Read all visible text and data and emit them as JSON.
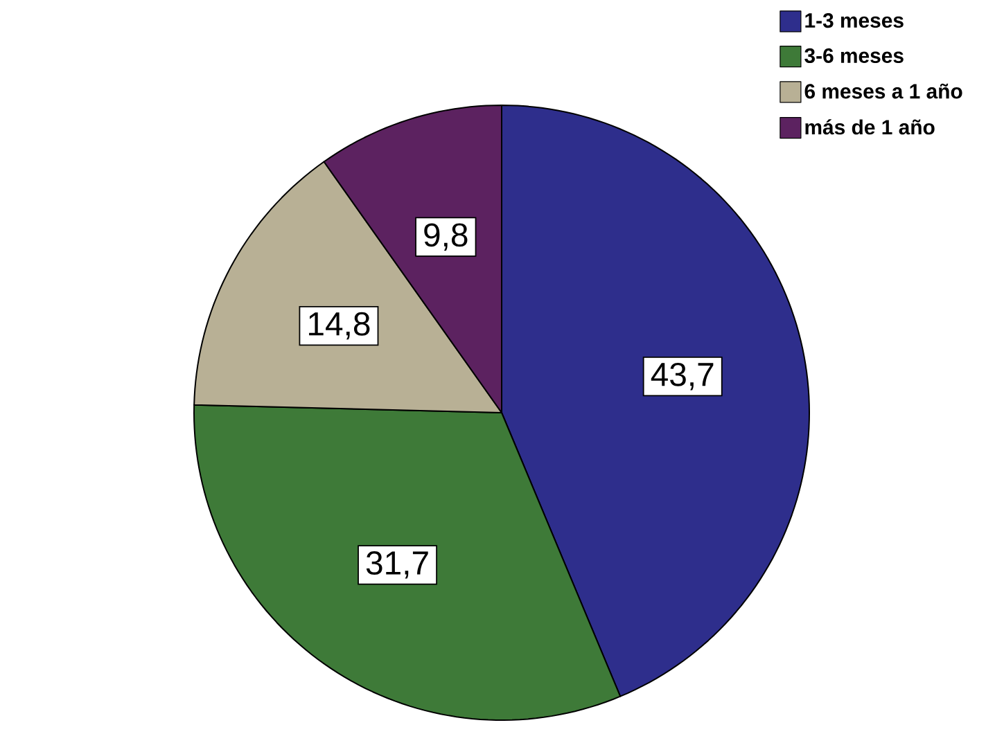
{
  "chart_data": {
    "type": "pie",
    "categories": [
      "1-3 meses",
      "3-6 meses",
      "6 meses a 1 año",
      "más de 1 año"
    ],
    "values": [
      43.7,
      31.7,
      14.8,
      9.8
    ],
    "colors": [
      "#2e2e8c",
      "#3e7a38",
      "#b8b095",
      "#5c2260"
    ],
    "value_labels": [
      "43,7",
      "31,7",
      "14,8",
      "9,8"
    ],
    "legend": "top right"
  }
}
